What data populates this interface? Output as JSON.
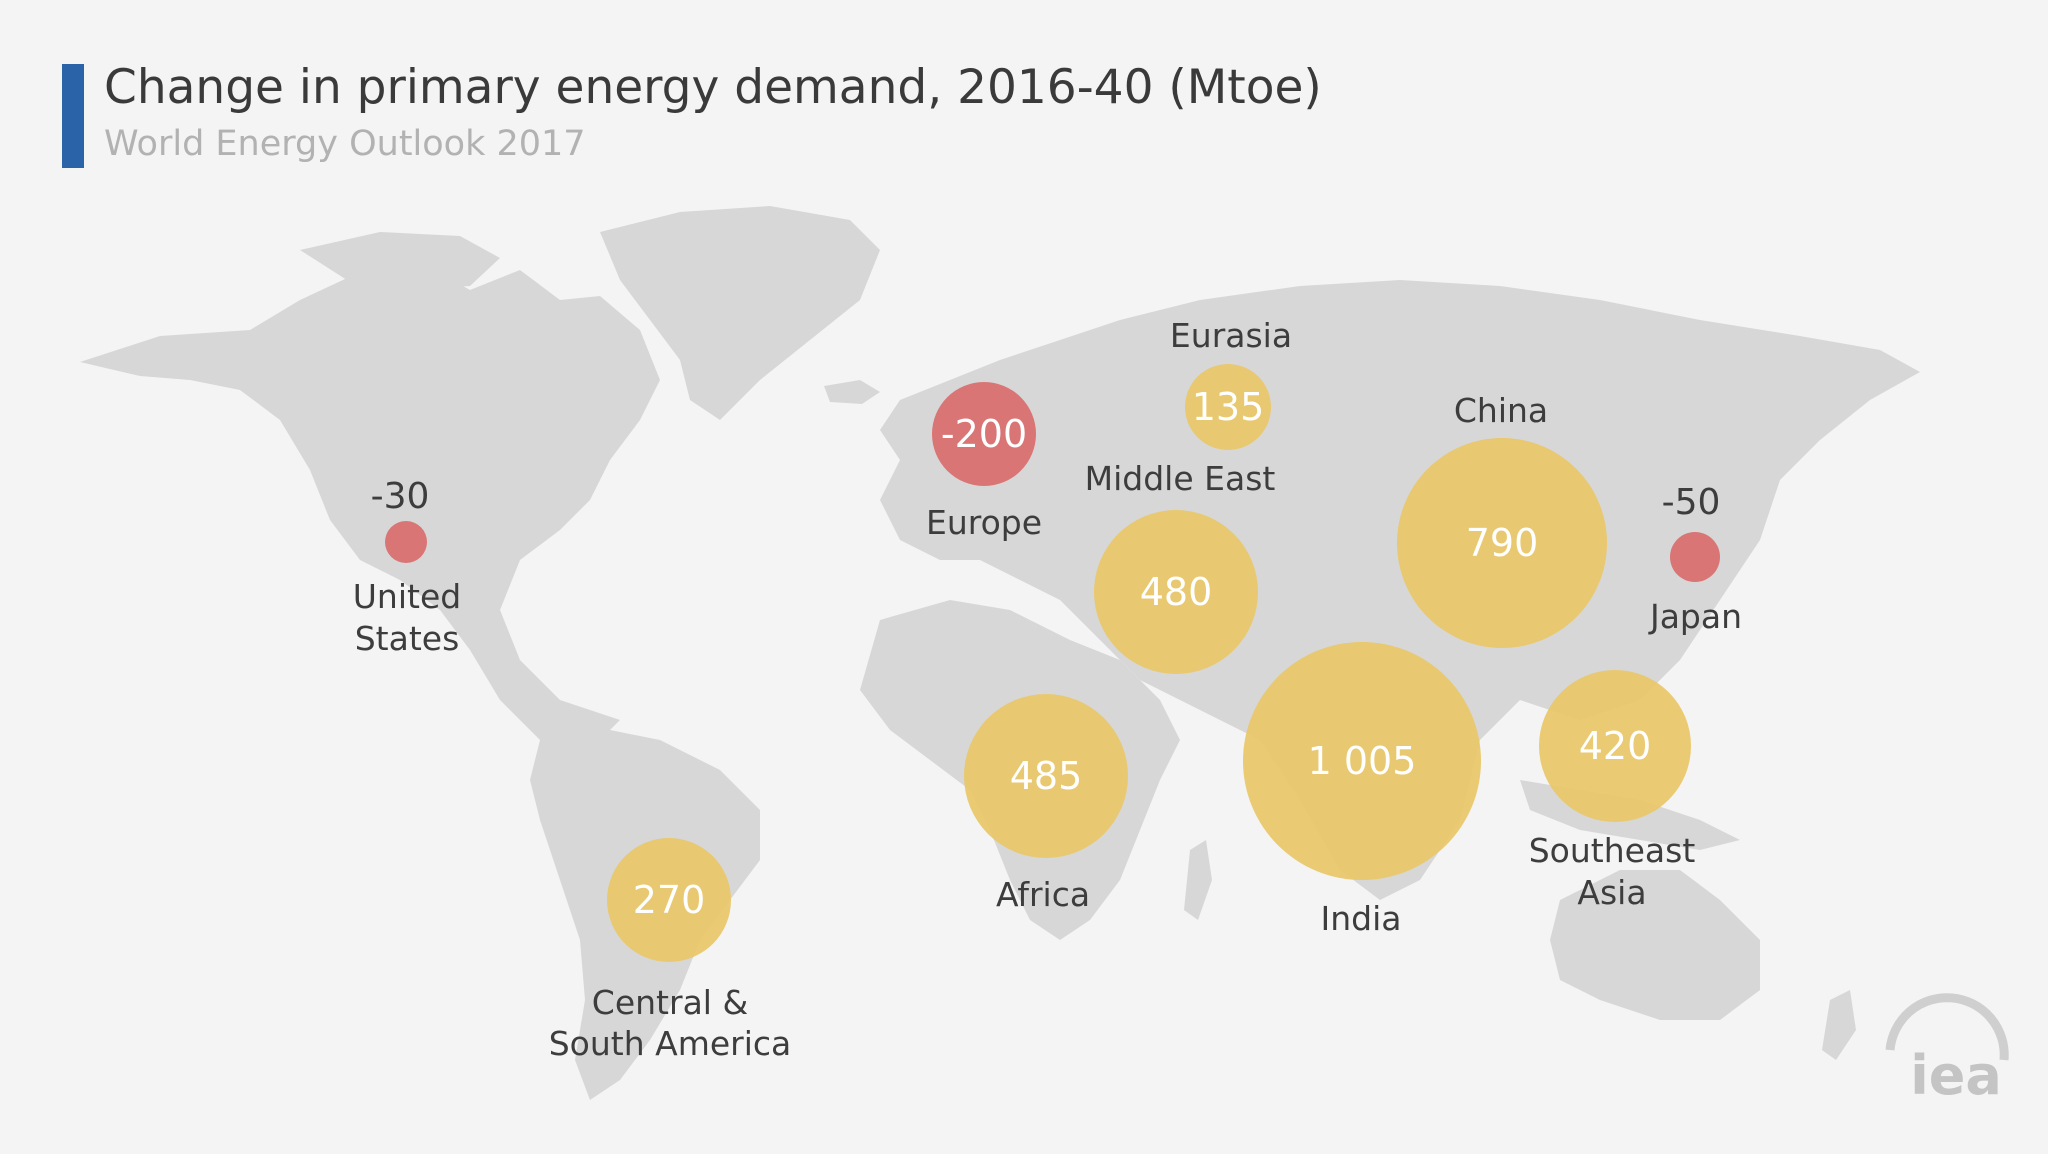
{
  "header": {
    "title": "Change in primary energy demand, 2016-40 (Mtoe)",
    "subtitle": "World Energy Outlook 2017"
  },
  "colors": {
    "increase": "#e9c76a",
    "decrease": "#d96c6c",
    "land": "#d7d7d7",
    "background": "#f4f4f4",
    "title_accent": "#2b63a8"
  },
  "regions": [
    {
      "id": "united-states",
      "label": [
        "United",
        "States"
      ],
      "value_text": "-30",
      "value": -30
    },
    {
      "id": "europe",
      "label": [
        "Europe"
      ],
      "value_text": "-200",
      "value": -200
    },
    {
      "id": "eurasia",
      "label": [
        "Eurasia"
      ],
      "value_text": "135",
      "value": 135
    },
    {
      "id": "middle-east",
      "label": [
        "Middle East"
      ],
      "value_text": "480",
      "value": 480
    },
    {
      "id": "china",
      "label": [
        "China"
      ],
      "value_text": "790",
      "value": 790
    },
    {
      "id": "japan",
      "label": [
        "Japan"
      ],
      "value_text": "-50",
      "value": -50
    },
    {
      "id": "india",
      "label": [
        "India"
      ],
      "value_text": "1 005",
      "value": 1005
    },
    {
      "id": "southeast-asia",
      "label": [
        "Southeast",
        "Asia"
      ],
      "value_text": "420",
      "value": 420
    },
    {
      "id": "africa",
      "label": [
        "Africa"
      ],
      "value_text": "485",
      "value": 485
    },
    {
      "id": "central-south-america",
      "label": [
        "Central &",
        "South America"
      ],
      "value_text": "270",
      "value": 270
    }
  ],
  "logo": {
    "text": "iea"
  }
}
